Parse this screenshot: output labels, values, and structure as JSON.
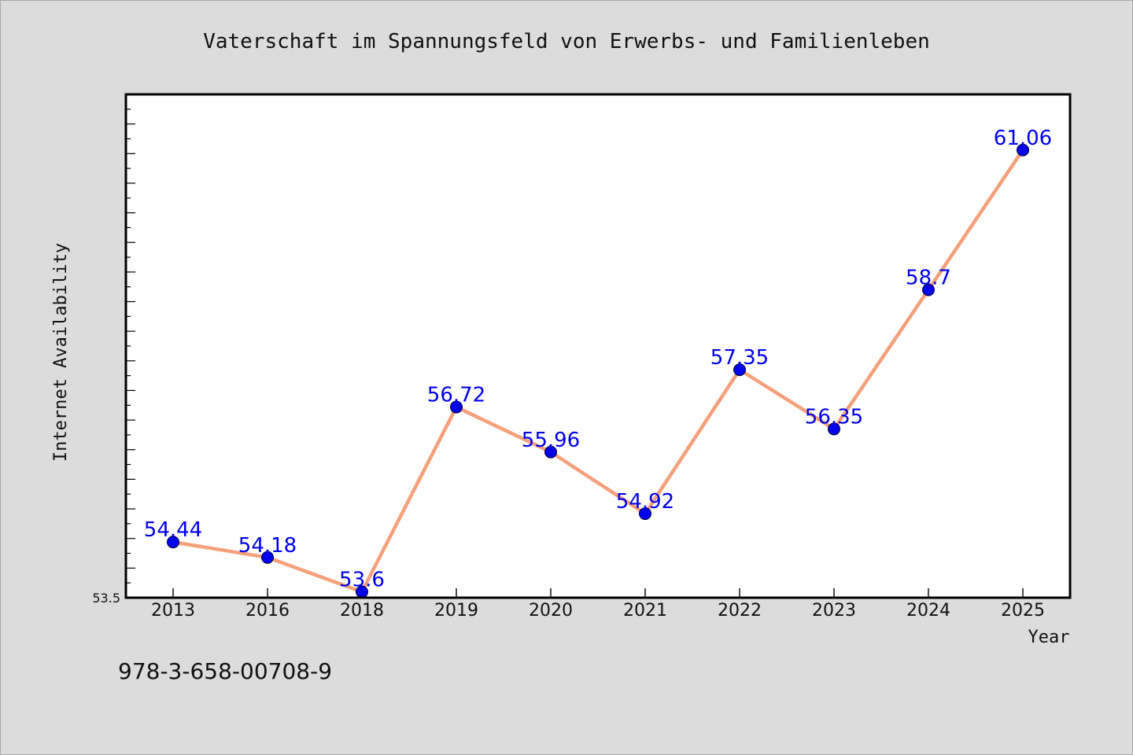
{
  "chart_data": {
    "type": "line",
    "title": "Vaterschaft im Spannungsfeld von Erwerbs- und Familienleben",
    "xlabel": "Year",
    "ylabel": "Internet Availability",
    "categories": [
      "2013",
      "2016",
      "2018",
      "2019",
      "2020",
      "2021",
      "2022",
      "2023",
      "2024",
      "2025"
    ],
    "series": [
      {
        "values": [
          54.44,
          54.18,
          53.6,
          56.72,
          55.96,
          54.92,
          57.35,
          56.35,
          58.7,
          61.06
        ],
        "labels": [
          "54.44",
          "54.18",
          "53.6",
          "56.72",
          "55.96",
          "54.92",
          "57.35",
          "56.35",
          "58.7",
          "61.06"
        ]
      }
    ],
    "ylim": [
      53.5,
      62.0
    ],
    "y_tick_label": "53.5",
    "line_color": "#f4a07a",
    "marker_color": "#0000ee",
    "label_color": "#0000ee",
    "grid": false
  },
  "footer_text": "978-3-658-00708-9"
}
